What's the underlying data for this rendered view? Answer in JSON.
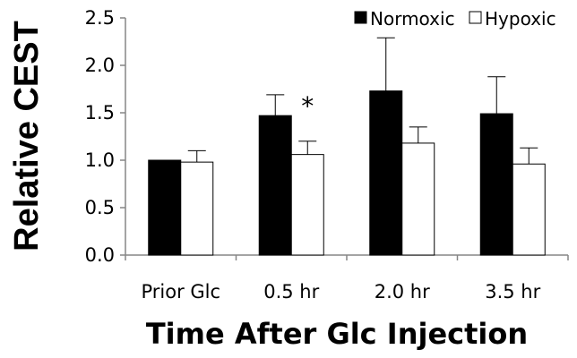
{
  "chart_data": {
    "type": "bar",
    "categories": [
      "Prior Glc",
      "0.5 hr",
      "2.0 hr",
      "3.5 hr"
    ],
    "series": [
      {
        "name": "Normoxic",
        "values": [
          1.0,
          1.47,
          1.73,
          1.49
        ],
        "errors": [
          0.0,
          0.22,
          0.56,
          0.39
        ],
        "color": "#000000"
      },
      {
        "name": "Hypoxic",
        "values": [
          0.98,
          1.06,
          1.18,
          0.96
        ],
        "errors": [
          0.12,
          0.14,
          0.17,
          0.17
        ],
        "color": "#ffffff"
      }
    ],
    "xlabel": "Time After Glc Injection",
    "ylabel": "Relative CEST",
    "ylim": [
      0,
      2.5
    ],
    "yticks": [
      "0.0",
      "0.5",
      "1.0",
      "1.5",
      "2.0",
      "2.5"
    ],
    "legend_position": "top-right",
    "grid": false,
    "annotations": [
      {
        "text": "*",
        "category": "0.5 hr"
      }
    ]
  }
}
